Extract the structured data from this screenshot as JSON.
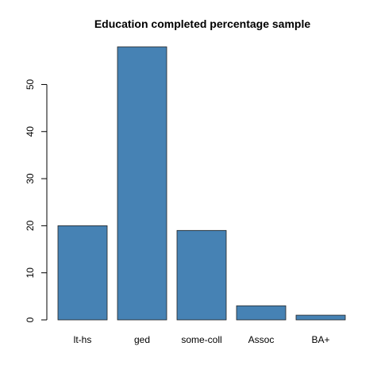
{
  "colors": {
    "bar_fill": "#4682b4",
    "bar_stroke": "#222222",
    "axis": "#000000",
    "background": "#ffffff"
  },
  "chart_data": {
    "type": "bar",
    "title": "Education completed percentage sample",
    "xlabel": "",
    "ylabel": "",
    "categories": [
      "lt-hs",
      "ged",
      "some-coll",
      "Assoc",
      "BA+"
    ],
    "values": [
      20,
      58,
      19,
      3,
      1
    ],
    "yticks": [
      0,
      10,
      20,
      30,
      40,
      50
    ],
    "ylim": [
      0,
      58
    ],
    "grid": false,
    "legend": "none"
  }
}
